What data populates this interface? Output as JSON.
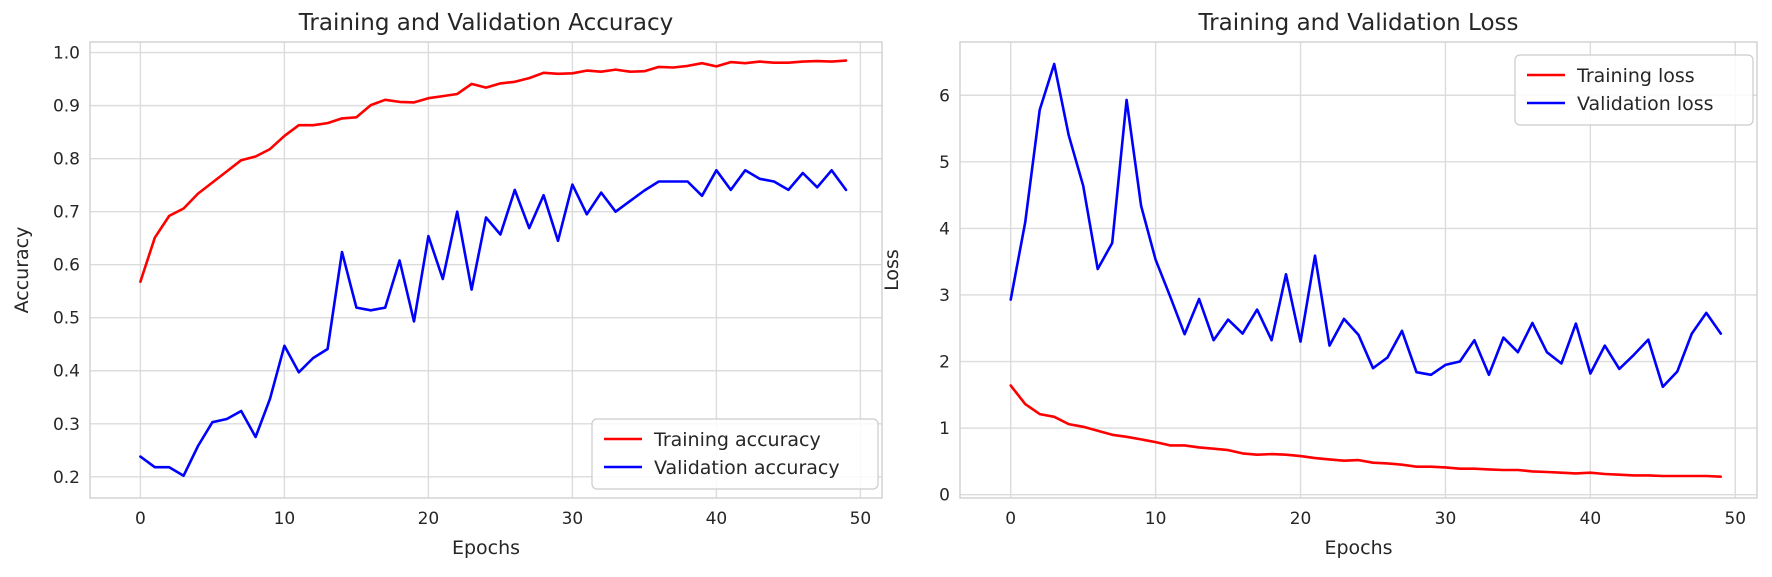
{
  "chart_data": [
    {
      "type": "line",
      "title": "Training and Validation Accuracy",
      "xlabel": "Epochs",
      "ylabel": "Accuracy",
      "xlim": [
        -3.5,
        51.5
      ],
      "ylim": [
        0.16,
        1.02
      ],
      "xticks": [
        0,
        10,
        20,
        30,
        40,
        50
      ],
      "yticks": [
        0.2,
        0.3,
        0.4,
        0.5,
        0.6,
        0.7,
        0.8,
        0.9,
        1.0
      ],
      "ytick_labels": [
        "0.2",
        "0.3",
        "0.4",
        "0.5",
        "0.6",
        "0.7",
        "0.8",
        "0.9",
        "1.0"
      ],
      "grid": true,
      "legend_position": "lower-right",
      "x": [
        0,
        1,
        2,
        3,
        4,
        5,
        6,
        7,
        8,
        9,
        10,
        11,
        12,
        13,
        14,
        15,
        16,
        17,
        18,
        19,
        20,
        21,
        22,
        23,
        24,
        25,
        26,
        27,
        28,
        29,
        30,
        31,
        32,
        33,
        34,
        35,
        36,
        37,
        38,
        39,
        40,
        41,
        42,
        43,
        44,
        45,
        46,
        47,
        48,
        49
      ],
      "series": [
        {
          "name": "Training accuracy",
          "color": "#ff0000",
          "values": [
            0.568,
            0.651,
            0.692,
            0.706,
            0.734,
            0.755,
            0.776,
            0.797,
            0.804,
            0.818,
            0.843,
            0.863,
            0.863,
            0.867,
            0.876,
            0.878,
            0.901,
            0.911,
            0.907,
            0.906,
            0.914,
            0.918,
            0.922,
            0.941,
            0.934,
            0.942,
            0.945,
            0.952,
            0.962,
            0.96,
            0.961,
            0.966,
            0.964,
            0.968,
            0.964,
            0.965,
            0.973,
            0.972,
            0.975,
            0.98,
            0.974,
            0.982,
            0.98,
            0.983,
            0.981,
            0.981,
            0.983,
            0.984,
            0.983,
            0.985
          ]
        },
        {
          "name": "Validation accuracy",
          "color": "#0000ff",
          "values": [
            0.238,
            0.218,
            0.218,
            0.202,
            0.258,
            0.303,
            0.309,
            0.324,
            0.275,
            0.347,
            0.447,
            0.397,
            0.424,
            0.441,
            0.624,
            0.519,
            0.514,
            0.519,
            0.608,
            0.493,
            0.654,
            0.573,
            0.7,
            0.553,
            0.689,
            0.657,
            0.741,
            0.669,
            0.731,
            0.645,
            0.751,
            0.695,
            0.736,
            0.7,
            0.72,
            0.74,
            0.757,
            0.757,
            0.757,
            0.73,
            0.778,
            0.741,
            0.778,
            0.762,
            0.757,
            0.741,
            0.773,
            0.746,
            0.778,
            0.741
          ]
        }
      ]
    },
    {
      "type": "line",
      "title": "Training and Validation Loss",
      "xlabel": "Epochs",
      "ylabel": "Loss",
      "xlim": [
        -3.5,
        51.5
      ],
      "ylim": [
        -0.05,
        6.8
      ],
      "xticks": [
        0,
        10,
        20,
        30,
        40,
        50
      ],
      "yticks": [
        0,
        1,
        2,
        3,
        4,
        5,
        6
      ],
      "ytick_labels": [
        "0",
        "1",
        "2",
        "3",
        "4",
        "5",
        "6"
      ],
      "grid": true,
      "legend_position": "upper-right",
      "x": [
        0,
        1,
        2,
        3,
        4,
        5,
        6,
        7,
        8,
        9,
        10,
        11,
        12,
        13,
        14,
        15,
        16,
        17,
        18,
        19,
        20,
        21,
        22,
        23,
        24,
        25,
        26,
        27,
        28,
        29,
        30,
        31,
        32,
        33,
        34,
        35,
        36,
        37,
        38,
        39,
        40,
        41,
        42,
        43,
        44,
        45,
        46,
        47,
        48,
        49
      ],
      "series": [
        {
          "name": "Training loss",
          "color": "#ff0000",
          "values": [
            1.64,
            1.36,
            1.21,
            1.17,
            1.06,
            1.02,
            0.96,
            0.9,
            0.87,
            0.83,
            0.79,
            0.74,
            0.74,
            0.71,
            0.69,
            0.67,
            0.62,
            0.6,
            0.61,
            0.6,
            0.58,
            0.55,
            0.53,
            0.51,
            0.52,
            0.48,
            0.47,
            0.45,
            0.42,
            0.42,
            0.41,
            0.39,
            0.39,
            0.38,
            0.37,
            0.37,
            0.35,
            0.34,
            0.33,
            0.32,
            0.33,
            0.31,
            0.3,
            0.29,
            0.29,
            0.28,
            0.28,
            0.28,
            0.28,
            0.27
          ]
        },
        {
          "name": "Validation loss",
          "color": "#0000ff",
          "values": [
            2.93,
            4.09,
            5.78,
            6.47,
            5.4,
            4.64,
            3.39,
            3.78,
            5.93,
            4.34,
            3.53,
            2.98,
            2.41,
            2.94,
            2.32,
            2.63,
            2.42,
            2.78,
            2.32,
            3.31,
            2.3,
            3.59,
            2.24,
            2.64,
            2.4,
            1.9,
            2.06,
            2.46,
            1.84,
            1.8,
            1.95,
            2.0,
            2.32,
            1.8,
            2.36,
            2.14,
            2.58,
            2.14,
            1.97,
            2.57,
            1.82,
            2.24,
            1.89,
            2.1,
            2.33,
            1.62,
            1.85,
            2.42,
            2.73,
            2.42
          ]
        }
      ]
    }
  ]
}
